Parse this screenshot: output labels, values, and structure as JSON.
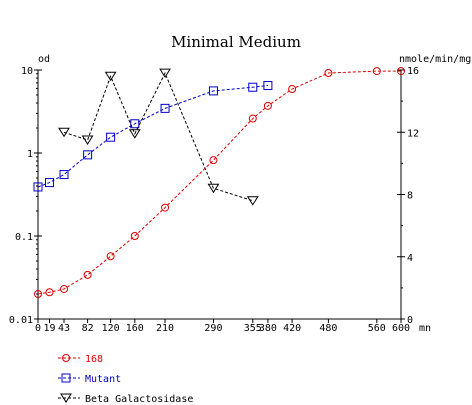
{
  "chart_data": {
    "type": "line",
    "title": "Minimal Medium",
    "x_unit": "mn",
    "left_axis_unit": "od",
    "right_axis_unit": "nmole/min/mg",
    "x_ticks": [
      0,
      19,
      43,
      82,
      120,
      160,
      210,
      290,
      355,
      380,
      420,
      480,
      560,
      600
    ],
    "x_tick_labels": [
      "0",
      "19",
      "43",
      "82",
      "120",
      "160",
      "210",
      "290",
      "355",
      "380",
      "420",
      "480",
      "560",
      "600"
    ],
    "xlim": [
      0,
      600
    ],
    "left_ylim": [
      0.01,
      10
    ],
    "left_scale": "log",
    "left_ticks": [
      0.01,
      0.1,
      1,
      10
    ],
    "left_tick_labels": [
      "0.01",
      "0.1",
      "1",
      "10"
    ],
    "right_ylim": [
      0,
      16
    ],
    "right_ticks": [
      0,
      4,
      8,
      12,
      16
    ],
    "right_tick_labels": [
      "0",
      "4",
      "8",
      "12",
      "16"
    ],
    "grid": false,
    "legend_position": "bottom-left",
    "series": [
      {
        "name": "168",
        "axis": "left",
        "marker": "circle",
        "color": "#dd0000",
        "x": [
          0,
          19,
          43,
          82,
          120,
          160,
          210,
          290,
          355,
          380,
          420,
          480,
          560,
          600
        ],
        "y": [
          0.02,
          0.021,
          0.023,
          0.034,
          0.057,
          0.1,
          0.22,
          0.82,
          2.6,
          3.7,
          5.9,
          9.2,
          9.7,
          9.7
        ]
      },
      {
        "name": "Mutant",
        "axis": "left",
        "marker": "square",
        "color": "#0000cc",
        "x": [
          0,
          19,
          43,
          82,
          120,
          160,
          210,
          290,
          355,
          380
        ],
        "y": [
          0.39,
          0.44,
          0.55,
          0.95,
          1.55,
          2.25,
          3.45,
          5.6,
          6.2,
          6.5
        ]
      },
      {
        "name": "Beta Galactosidase",
        "axis": "right",
        "marker": "triangle-down",
        "color": "#000000",
        "x": [
          43,
          82,
          120,
          160,
          210,
          290,
          355
        ],
        "y": [
          12,
          11.5,
          15.6,
          11.9,
          15.8,
          8.4,
          7.6
        ]
      }
    ]
  }
}
